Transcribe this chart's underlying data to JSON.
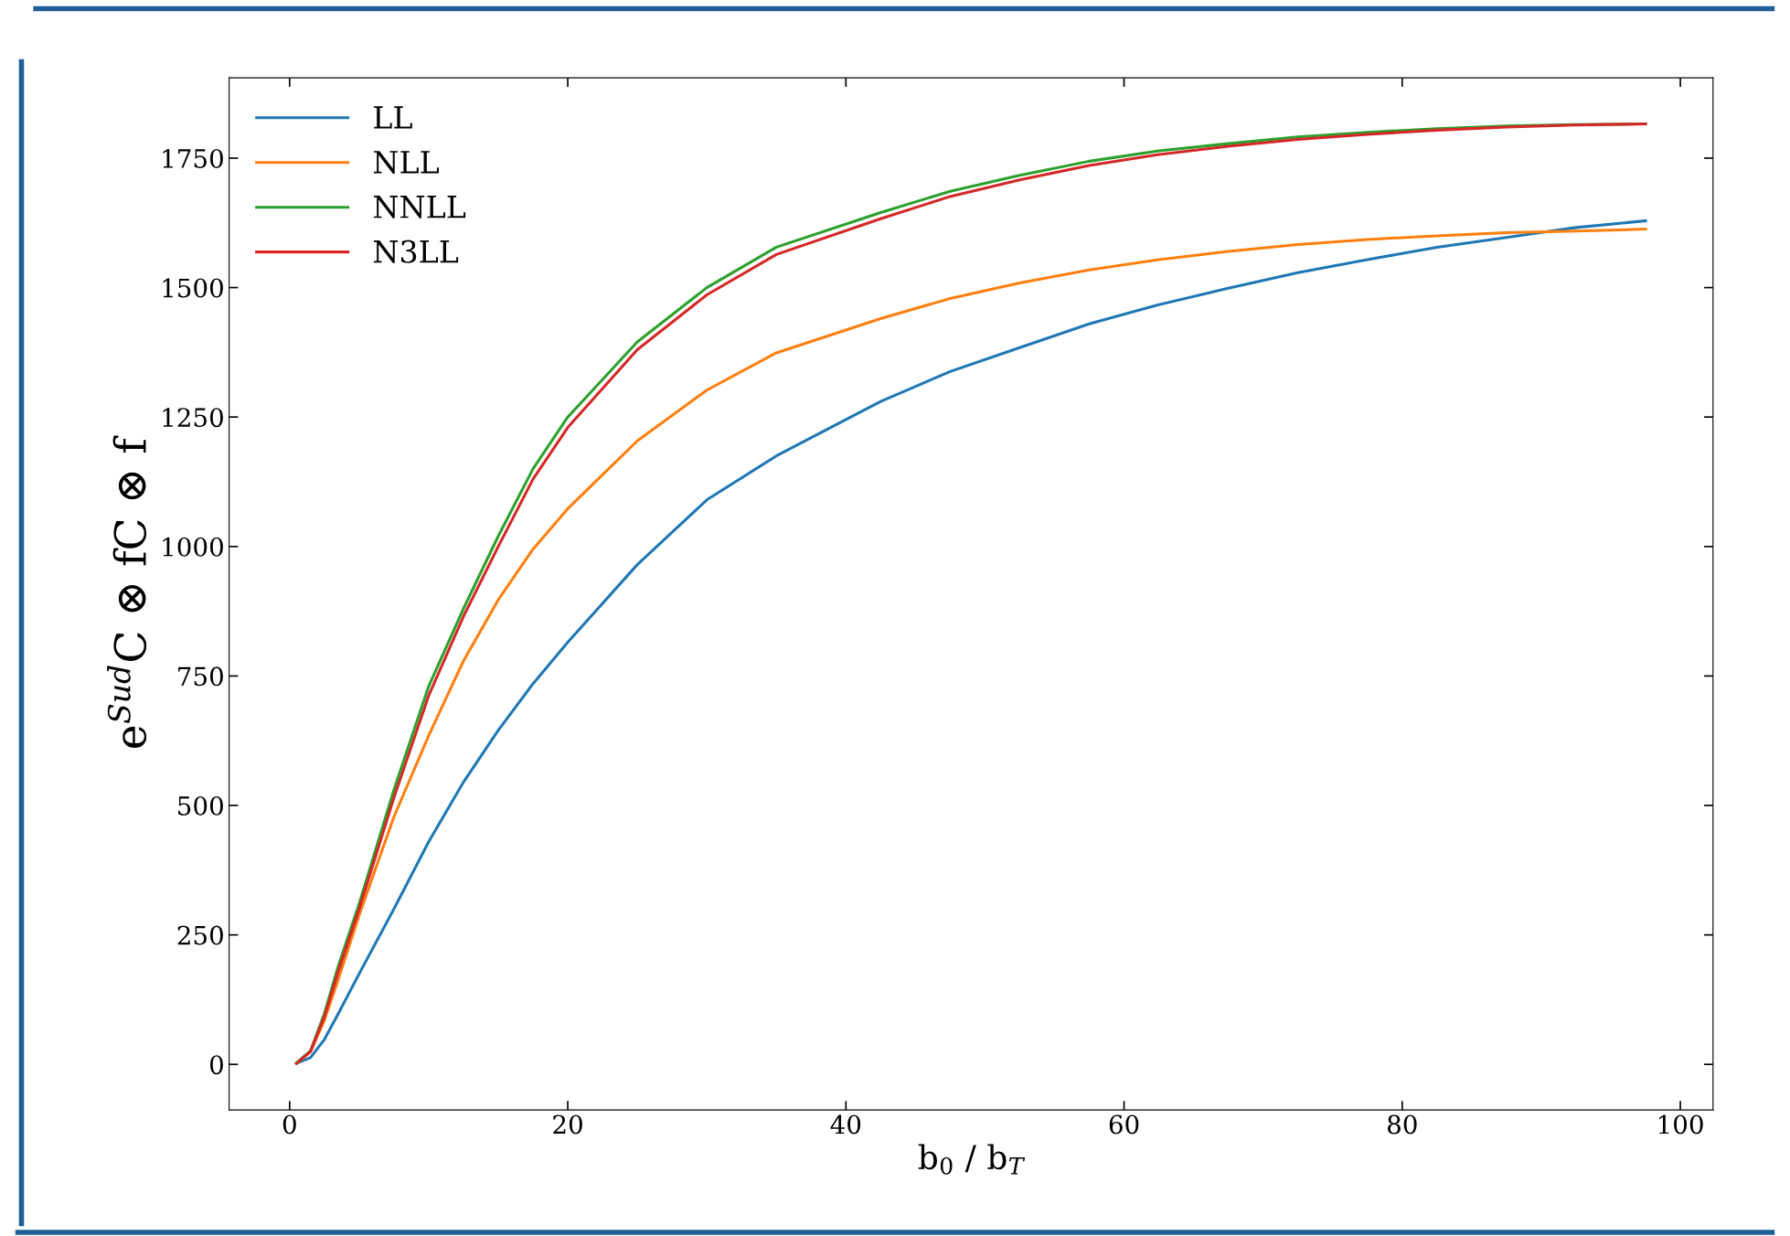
{
  "chart_data": {
    "type": "line",
    "x": [
      0.5,
      1.5,
      2.5,
      3.5,
      5,
      7.5,
      10,
      12.5,
      15,
      17.5,
      20,
      25,
      30,
      35,
      42.5,
      47.5,
      52.5,
      57.5,
      62.5,
      67.5,
      72.5,
      77.5,
      82.5,
      87.5,
      92.5,
      97.5
    ],
    "xlabel": "b$_{0}$ / b$_{T}$",
    "ylabel": "e$^{Sud}$C ⊗ fC ⊗ f",
    "series": [
      {
        "name": "LL",
        "color": "#1f77b4",
        "values": [
          2,
          13,
          48,
          98,
          175,
          300,
          430,
          545,
          645,
          735,
          815,
          965,
          1090,
          1175,
          1280,
          1338,
          1384,
          1430,
          1467,
          1499,
          1529,
          1554,
          1578,
          1597,
          1616,
          1629
        ]
      },
      {
        "name": "NLL",
        "color": "#ff7f0e",
        "values": [
          2,
          24,
          85,
          164,
          288,
          478,
          635,
          779,
          897,
          995,
          1073,
          1204,
          1302,
          1374,
          1440,
          1479,
          1509,
          1534,
          1554,
          1570,
          1583,
          1593,
          1600,
          1606,
          1609,
          1613
        ]
      },
      {
        "name": "NNLL",
        "color": "#2ca02c",
        "values": [
          3,
          26,
          98,
          190,
          310,
          530,
          730,
          880,
          1020,
          1150,
          1250,
          1395,
          1500,
          1578,
          1645,
          1686,
          1717,
          1744,
          1764,
          1778,
          1791,
          1800,
          1807,
          1812,
          1815,
          1816
        ]
      },
      {
        "name": "N3LL",
        "color": "#d62728",
        "values": [
          2,
          25,
          92,
          180,
          300,
          515,
          712,
          865,
          1000,
          1130,
          1230,
          1380,
          1486,
          1564,
          1633,
          1676,
          1708,
          1736,
          1757,
          1773,
          1786,
          1796,
          1804,
          1810,
          1814,
          1816
        ]
      }
    ],
    "xlim": [
      -4.35,
      102.35
    ],
    "ylim": [
      -88,
      1905
    ],
    "xticks": [
      0,
      20,
      40,
      60,
      80,
      100
    ],
    "yticks": [
      0,
      250,
      500,
      750,
      1000,
      1250,
      1500,
      1750
    ],
    "grid": false,
    "legend": "top left",
    "marker": "none",
    "line_style": "solid"
  }
}
